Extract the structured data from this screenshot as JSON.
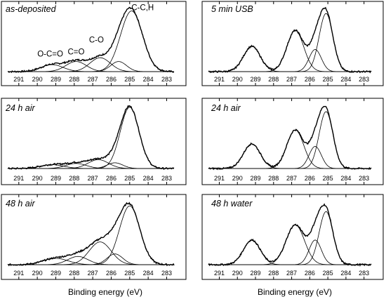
{
  "chart_data": {
    "type": "line",
    "figure_xlabel": "Binding energy (eV)",
    "x_ticks": [
      291,
      290,
      289,
      288,
      287,
      286,
      285,
      284,
      283
    ],
    "xlim": [
      291.6,
      282.6
    ],
    "x_reversed": true,
    "colors": {
      "line": "#000000",
      "background": "#ffffff"
    },
    "panels": [
      {
        "label": "as-deposited",
        "components": [
          {
            "center": 289.2,
            "height": 0.11,
            "fwhm": 1.4
          },
          {
            "center": 287.9,
            "height": 0.16,
            "fwhm": 1.3
          },
          {
            "center": 286.6,
            "height": 0.22,
            "fwhm": 1.3
          },
          {
            "center": 285.6,
            "height": 0.16,
            "fwhm": 1.0
          },
          {
            "center": 284.9,
            "height": 0.96,
            "fwhm": 1.4
          }
        ],
        "peak_labels": [
          {
            "text": "O-C=O",
            "x": 289.3,
            "y": 0.24
          },
          {
            "text": "C=O",
            "x": 287.9,
            "y": 0.27
          },
          {
            "text": "C-O",
            "x": 286.8,
            "y": 0.46
          },
          {
            "text": "C-C,H",
            "x": 284.3,
            "y": 0.97
          }
        ]
      },
      {
        "label": "24 h air",
        "components": [
          {
            "center": 289.2,
            "height": 0.06,
            "fwhm": 1.5
          },
          {
            "center": 287.9,
            "height": 0.08,
            "fwhm": 1.3
          },
          {
            "center": 286.7,
            "height": 0.14,
            "fwhm": 1.3
          },
          {
            "center": 285.8,
            "height": 0.09,
            "fwhm": 1.0
          },
          {
            "center": 285.0,
            "height": 0.97,
            "fwhm": 1.2
          }
        ],
        "peak_labels": []
      },
      {
        "label": "48 h air",
        "components": [
          {
            "center": 289.0,
            "height": 0.1,
            "fwhm": 1.6
          },
          {
            "center": 287.8,
            "height": 0.13,
            "fwhm": 1.3
          },
          {
            "center": 286.6,
            "height": 0.36,
            "fwhm": 1.4
          },
          {
            "center": 285.8,
            "height": 0.17,
            "fwhm": 1.0
          },
          {
            "center": 285.0,
            "height": 0.93,
            "fwhm": 1.3
          }
        ],
        "peak_labels": []
      },
      {
        "label": "5 min USB",
        "components": [
          {
            "center": 289.2,
            "height": 0.4,
            "fwhm": 1.1
          },
          {
            "center": 286.8,
            "height": 0.65,
            "fwhm": 1.1
          },
          {
            "center": 285.7,
            "height": 0.35,
            "fwhm": 0.8
          },
          {
            "center": 285.1,
            "height": 0.92,
            "fwhm": 0.9
          }
        ],
        "peak_labels": []
      },
      {
        "label": "24 h air",
        "components": [
          {
            "center": 289.2,
            "height": 0.39,
            "fwhm": 1.1
          },
          {
            "center": 286.8,
            "height": 0.61,
            "fwhm": 1.1
          },
          {
            "center": 285.7,
            "height": 0.35,
            "fwhm": 0.8
          },
          {
            "center": 285.1,
            "height": 0.9,
            "fwhm": 0.9
          }
        ],
        "peak_labels": []
      },
      {
        "label": "48 h water",
        "components": [
          {
            "center": 289.2,
            "height": 0.39,
            "fwhm": 1.1
          },
          {
            "center": 286.8,
            "height": 0.63,
            "fwhm": 1.2
          },
          {
            "center": 285.7,
            "height": 0.39,
            "fwhm": 0.8
          },
          {
            "center": 285.1,
            "height": 0.84,
            "fwhm": 0.9
          }
        ],
        "peak_labels": []
      }
    ]
  }
}
